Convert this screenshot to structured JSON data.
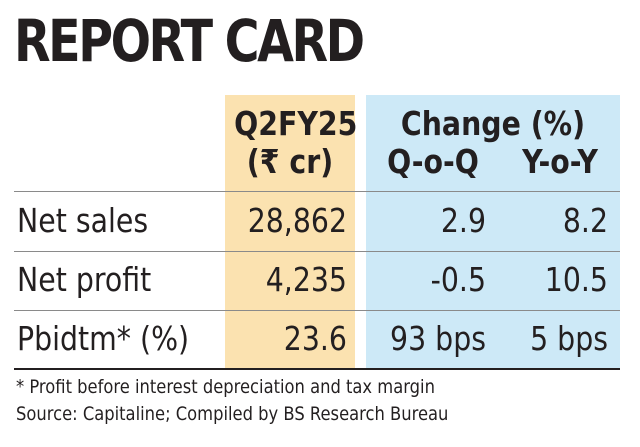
{
  "chart_data": {
    "type": "table",
    "title": "REPORT CARD",
    "columns": {
      "q2": [
        "Q2FY25",
        "(₹ cr)"
      ],
      "change_group": "Change (%)",
      "qoq": "Q-o-Q",
      "yoy": "Y-o-Y"
    },
    "rows": [
      {
        "label": "Net sales",
        "q2": "28,862",
        "qoq": "2.9",
        "yoy": "8.2"
      },
      {
        "label": "Net profit",
        "q2": "4,235",
        "qoq": "-0.5",
        "yoy": "10.5"
      },
      {
        "label": "Pbidtm* (%)",
        "q2": "23.6",
        "qoq": "93 bps",
        "yoy": "5 bps"
      }
    ],
    "footnote": "* Profit before interest depreciation and tax margin",
    "source": "Source: Capitaline; Compiled by BS Research Bureau"
  },
  "colors": {
    "q2_column_bg": "#fbe2b0",
    "change_columns_bg": "#cde9f7",
    "text": "#231f20"
  }
}
